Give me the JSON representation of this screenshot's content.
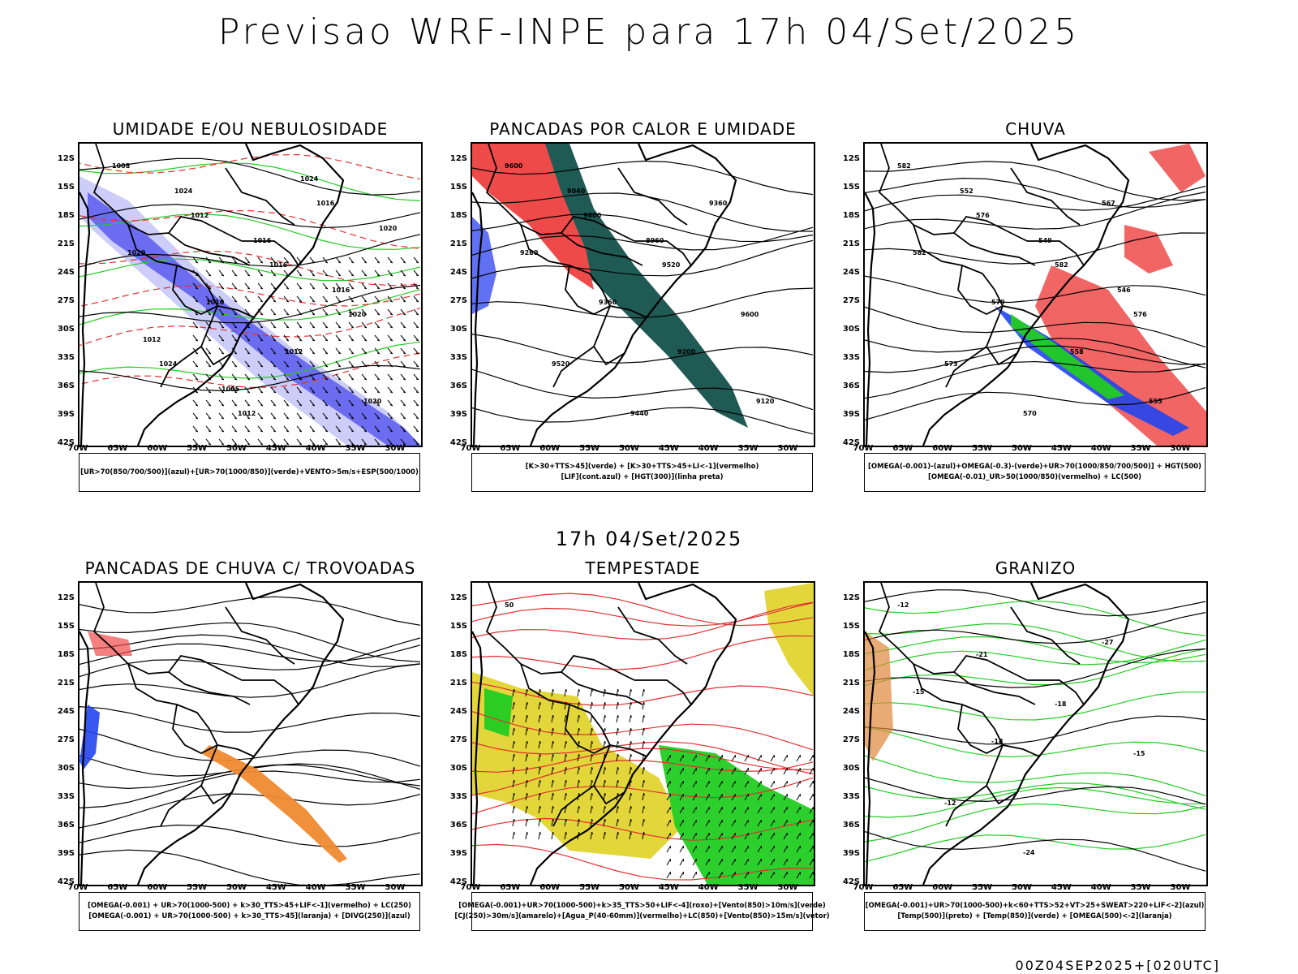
{
  "main_title": "Previsao WRF-INPE  para 17h 04/Set/2025",
  "mid_title": "17h 04/Set/2025",
  "footer": "00Z04SEP2025+[020UTC]",
  "axes": {
    "lat_labels": [
      "12S",
      "15S",
      "18S",
      "21S",
      "24S",
      "27S",
      "30S",
      "33S",
      "36S",
      "39S",
      "42S"
    ],
    "lon_labels": [
      "70W",
      "65W",
      "60W",
      "55W",
      "50W",
      "45W",
      "40W",
      "35W",
      "30W"
    ]
  },
  "panels": [
    {
      "title": "UMIDADE E/OU NEBULOSIDADE",
      "legend": [
        "[UR>70(850/700/500)](azul)+[UR>70(1000/850)](verde)+VENTO>5m/s+ESP(500/1000)"
      ],
      "contour_labels": [
        "1008",
        "1012",
        "1016",
        "1020",
        "1024",
        "1012",
        "1016",
        "1020",
        "1016",
        "1012",
        "1020",
        "1024",
        "1016",
        "1016",
        "1012",
        "1005",
        "1024",
        "1020"
      ],
      "colors": {
        "humid_high": "#5b5bf0",
        "humid_low": "#22cc22",
        "thickness": "#e03030"
      }
    },
    {
      "title": "PANCADAS POR CALOR E UMIDADE",
      "legend": [
        "[K>30+TTS>45](verde) + [K>30+TTS>45+LI<-1](vermelho)",
        "[LIF](cont.azul) + [HGT(300)](linha preta)"
      ],
      "contour_labels": [
        "9600",
        "9600",
        "9520",
        "9600",
        "9520",
        "9440",
        "9360",
        "9280",
        "9360",
        "9200",
        "9120",
        "9040",
        "8960"
      ],
      "colors": {
        "green": "#1f5a55",
        "red": "#ef4a4a",
        "blue": "#3a4ef0"
      }
    },
    {
      "title": "CHUVA",
      "legend": [
        "[OMEGA(-0.001)-(azul)+OMEGA(-0.3)-(verde)+UR>70(1000/850/700/500)] + HGT(500)",
        "[OMEGA(-0.01)_UR>50(1000/850)(vermelho) + LC(500)"
      ],
      "contour_labels": [
        "582",
        "576",
        "582",
        "576",
        "573",
        "570",
        "567",
        "582",
        "579",
        "558",
        "555",
        "552",
        "549",
        "546"
      ],
      "colors": {
        "red": "#ef4a4a",
        "blue": "#2244ee",
        "green": "#22cc22"
      }
    },
    {
      "title": "PANCADAS DE CHUVA C/ TROVOADAS",
      "legend": [
        "[OMEGA(-0.001) + UR>70(1000-500) + k>30_TTS>45+LIF<-1](vermelho) + LC(250)",
        "[OMEGA(-0.001) + UR>70(1000-500) + k>30_TTS>45](laranja) + [DIVG(250)](azul)"
      ],
      "contour_labels": [],
      "colors": {
        "orange": "#f08a30",
        "red": "#ef4a4a",
        "blue": "#2244ee"
      }
    },
    {
      "title": "TEMPESTADE",
      "legend": [
        "[OMEGA(-0.001)+UR>70(1000-500)+k>35_TTS>50+LIF<-4](roxo)+[Vento(850)>10m/s](verde)",
        "[CJ(250)>30m/s](amarelo)+[Agua_P(40-60mm)](vermelho)+LC(850)+[Vento(850)>15m/s](vetor)"
      ],
      "contour_labels": [
        "50"
      ],
      "colors": {
        "yellow": "#e0d430",
        "green": "#22cc22",
        "red": "#ef4a4a"
      }
    },
    {
      "title": "GRANIZO",
      "legend": [
        "[OMEGA(-0.001)+UR>70(1000-500)+k<60+TTS>52+VT>25+SWEAT>220+LIF<-2](azul)",
        "[Temp(500)](preto) + [Temp(850)](verde) + [OMEGA(500)<-2](laranja)"
      ],
      "contour_labels": [
        "-12",
        "-21",
        "-18",
        "-15",
        "-12",
        "-24",
        "-27",
        "-15",
        "-18"
      ],
      "colors": {
        "green": "#22cc22",
        "orange": "#e0883a",
        "black": "#000000"
      }
    }
  ]
}
